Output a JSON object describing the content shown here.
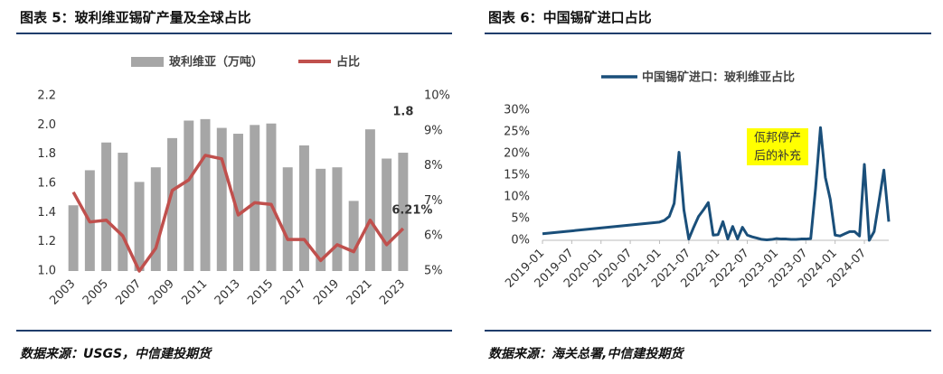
{
  "chart_data": [
    {
      "type": "combo",
      "title": "图表 5：玻利维亚锡矿产量及全球占比",
      "source": "数据来源：USGS，中信建投期货",
      "categories": [
        "2003",
        null,
        "2005",
        null,
        "2007",
        null,
        "2009",
        null,
        "2011",
        null,
        "2013",
        null,
        "2015",
        null,
        "2017",
        null,
        "2019",
        null,
        "2021",
        null,
        "2023"
      ],
      "series": [
        {
          "name": "玻利维亚（万吨）",
          "type": "bar",
          "color": "#a6a6a6",
          "values": [
            1.45,
            1.69,
            1.88,
            1.81,
            1.61,
            1.71,
            1.91,
            2.03,
            2.04,
            1.98,
            1.94,
            2.0,
            2.01,
            1.71,
            1.86,
            1.7,
            1.71,
            1.48,
            1.97,
            1.77,
            1.81
          ],
          "value_labels": [
            null,
            null,
            null,
            null,
            null,
            null,
            null,
            null,
            null,
            null,
            null,
            null,
            null,
            null,
            null,
            null,
            null,
            null,
            null,
            null,
            "1.8"
          ]
        },
        {
          "name": "占比",
          "type": "line",
          "axis": "y2",
          "color": "#c0504d",
          "values": [
            7.25,
            6.4,
            6.45,
            6.0,
            5.0,
            5.65,
            7.3,
            7.6,
            8.3,
            8.2,
            6.6,
            6.95,
            6.9,
            5.9,
            5.9,
            5.3,
            5.75,
            5.55,
            6.45,
            5.75,
            6.21
          ],
          "value_labels": [
            null,
            null,
            null,
            null,
            null,
            null,
            null,
            null,
            null,
            null,
            null,
            null,
            null,
            null,
            null,
            null,
            null,
            null,
            null,
            null,
            "6.21%"
          ]
        }
      ],
      "ylim": [
        1.0,
        2.2
      ],
      "yticks": [
        {
          "value": 1.0,
          "label": "1.0"
        },
        1.2,
        1.4,
        1.6,
        1.8,
        {
          "value": 2.0,
          "label": "2.0"
        },
        2.2
      ],
      "y2lim": [
        5,
        10
      ],
      "y2ticks": [
        {
          "value": 5,
          "label": "5%"
        },
        {
          "value": 6,
          "label": "6%"
        },
        {
          "value": 7,
          "label": "7%"
        },
        {
          "value": 8,
          "label": "8%"
        },
        {
          "value": 9,
          "label": "9%"
        },
        {
          "value": 10,
          "label": "10%"
        }
      ],
      "grid": false,
      "legend": "top"
    },
    {
      "type": "line",
      "title": "图表 6：中国锡矿进口占比",
      "source": "数据来源：海关总署,中信建投期货",
      "annotation": [
        "佤邦停产",
        "后的补充"
      ],
      "x": [
        "2019-01",
        "2021-01",
        "2021-02",
        "2021-03",
        "2021-04",
        "2021-05",
        "2021-06",
        "2021-07",
        "2021-08",
        "2021-09",
        "2021-10",
        "2021-11",
        "2021-12",
        "2022-01",
        "2022-02",
        "2022-03",
        "2022-04",
        "2022-05",
        "2022-06",
        "2022-07",
        "2022-08",
        "2022-09",
        "2022-10",
        "2022-11",
        "2022-12",
        "2023-01",
        "2023-02",
        "2023-03",
        "2023-04",
        "2023-05",
        "2023-06",
        "2023-07",
        "2023-08",
        "2023-09",
        "2023-10",
        "2023-11",
        "2023-12",
        "2024-01",
        "2024-02",
        "2024-03",
        "2024-04",
        "2024-05",
        "2024-06",
        "2024-07",
        "2024-08",
        "2024-09",
        "2024-10",
        "2024-11",
        "2024-12"
      ],
      "series": [
        {
          "name": "中国锡矿进口：玻利维亚占比",
          "color": "#1a4f7a",
          "values": [
            1.5,
            4.2,
            4.6,
            5.5,
            8.5,
            20.3,
            7,
            0.3,
            3,
            5.5,
            7,
            8.7,
            1.2,
            1.3,
            4.3,
            0.3,
            3.2,
            0.3,
            3,
            1.2,
            0.8,
            0.5,
            0.2,
            0.1,
            0.2,
            0.4,
            0.3,
            0.3,
            0.2,
            0.2,
            0.3,
            0.3,
            0.4,
            12,
            26,
            14.5,
            9.5,
            1.2,
            1.0,
            1.5,
            2,
            2,
            1,
            17.5,
            0,
            2,
            9,
            16.2,
            4.3
          ]
        }
      ],
      "xlim": [
        "2019-01",
        "2024-12"
      ],
      "xticks": [
        "2019-01",
        "2019-07",
        "2020-01",
        "2020-07",
        "2021-01",
        "2021-07",
        "2022-01",
        "2022-07",
        "2023-01",
        "2023-07",
        "2024-01",
        "2024-07"
      ],
      "ylim": [
        0,
        30
      ],
      "yticks": [
        {
          "value": 0,
          "label": "0%"
        },
        {
          "value": 5,
          "label": "5%"
        },
        {
          "value": 10,
          "label": "10%"
        },
        {
          "value": 15,
          "label": "15%"
        },
        {
          "value": 20,
          "label": "20%"
        },
        {
          "value": 25,
          "label": "25%"
        },
        {
          "value": 30,
          "label": "30%"
        }
      ],
      "grid": false,
      "legend": "top"
    }
  ]
}
